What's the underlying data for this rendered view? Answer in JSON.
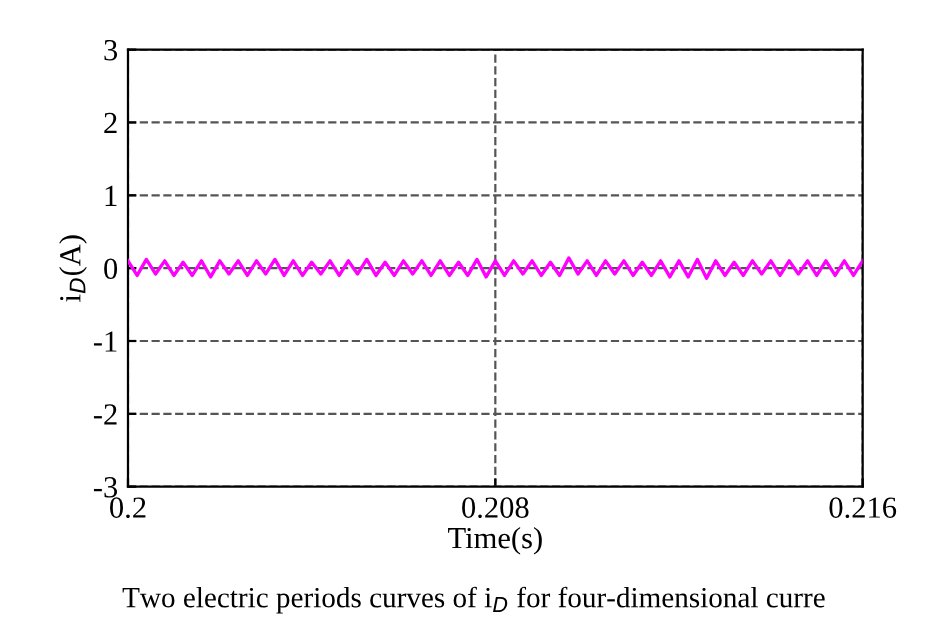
{
  "chart_data": {
    "type": "line",
    "xlabel": "Time(s)",
    "ylabel": "i$_{D}$(A)",
    "xlim": [
      0.2,
      0.216
    ],
    "xticks": [
      0.2,
      0.208,
      0.216
    ],
    "ylim": [
      -3,
      3
    ],
    "yticks": [
      -3,
      -2,
      -1,
      0,
      1,
      2,
      3
    ],
    "grid": true,
    "line_style": "solid",
    "marker": "none",
    "annotations": [
      "Two electric periods curves of i$_{D}$ for four-dimensional curre"
    ],
    "series": [
      {
        "color": "#ff00ff",
        "x": [
          0.2,
          0.2002,
          0.2004,
          0.2006,
          0.2008,
          0.201,
          0.2012,
          0.2014,
          0.2016,
          0.2018,
          0.202,
          0.2022,
          0.2024,
          0.2026,
          0.2028,
          0.203,
          0.2032,
          0.2034,
          0.2036,
          0.2038,
          0.204,
          0.2042,
          0.2044,
          0.2046,
          0.2048,
          0.205,
          0.2052,
          0.2054,
          0.2056,
          0.2058,
          0.206,
          0.2062,
          0.2064,
          0.2066,
          0.2068,
          0.207,
          0.2072,
          0.2074,
          0.2076,
          0.2078,
          0.208,
          0.2082,
          0.2084,
          0.2086,
          0.2088,
          0.209,
          0.2092,
          0.2094,
          0.2096,
          0.2098,
          0.21,
          0.2102,
          0.2104,
          0.2106,
          0.2108,
          0.211,
          0.2112,
          0.2114,
          0.2116,
          0.2118,
          0.212,
          0.2122,
          0.2124,
          0.2126,
          0.2128,
          0.213,
          0.2132,
          0.2134,
          0.2136,
          0.2138,
          0.214,
          0.2142,
          0.2144,
          0.2146,
          0.2148,
          0.215,
          0.2152,
          0.2154,
          0.2156,
          0.2158,
          0.216
        ],
        "values": [
          0.1,
          -0.1,
          0.12,
          -0.08,
          0.1,
          -0.1,
          0.08,
          -0.1,
          0.1,
          -0.12,
          0.1,
          -0.08,
          0.1,
          -0.1,
          0.1,
          -0.08,
          0.12,
          -0.1,
          0.1,
          -0.1,
          0.08,
          -0.08,
          0.1,
          -0.1,
          0.1,
          -0.08,
          0.12,
          -0.1,
          0.08,
          -0.1,
          0.1,
          -0.08,
          0.1,
          -0.1,
          0.1,
          -0.1,
          0.08,
          -0.1,
          0.12,
          -0.12,
          0.1,
          -0.1,
          0.1,
          -0.08,
          0.1,
          -0.1,
          0.08,
          -0.1,
          0.14,
          -0.08,
          0.1,
          -0.1,
          0.1,
          -0.08,
          0.1,
          -0.1,
          0.08,
          -0.1,
          0.1,
          -0.12,
          0.1,
          -0.12,
          0.12,
          -0.14,
          0.1,
          -0.1,
          0.08,
          -0.1,
          0.1,
          -0.08,
          0.1,
          -0.1,
          0.1,
          -0.08,
          0.1,
          -0.1,
          0.1,
          -0.1,
          0.1,
          -0.1,
          0.1
        ]
      }
    ]
  }
}
